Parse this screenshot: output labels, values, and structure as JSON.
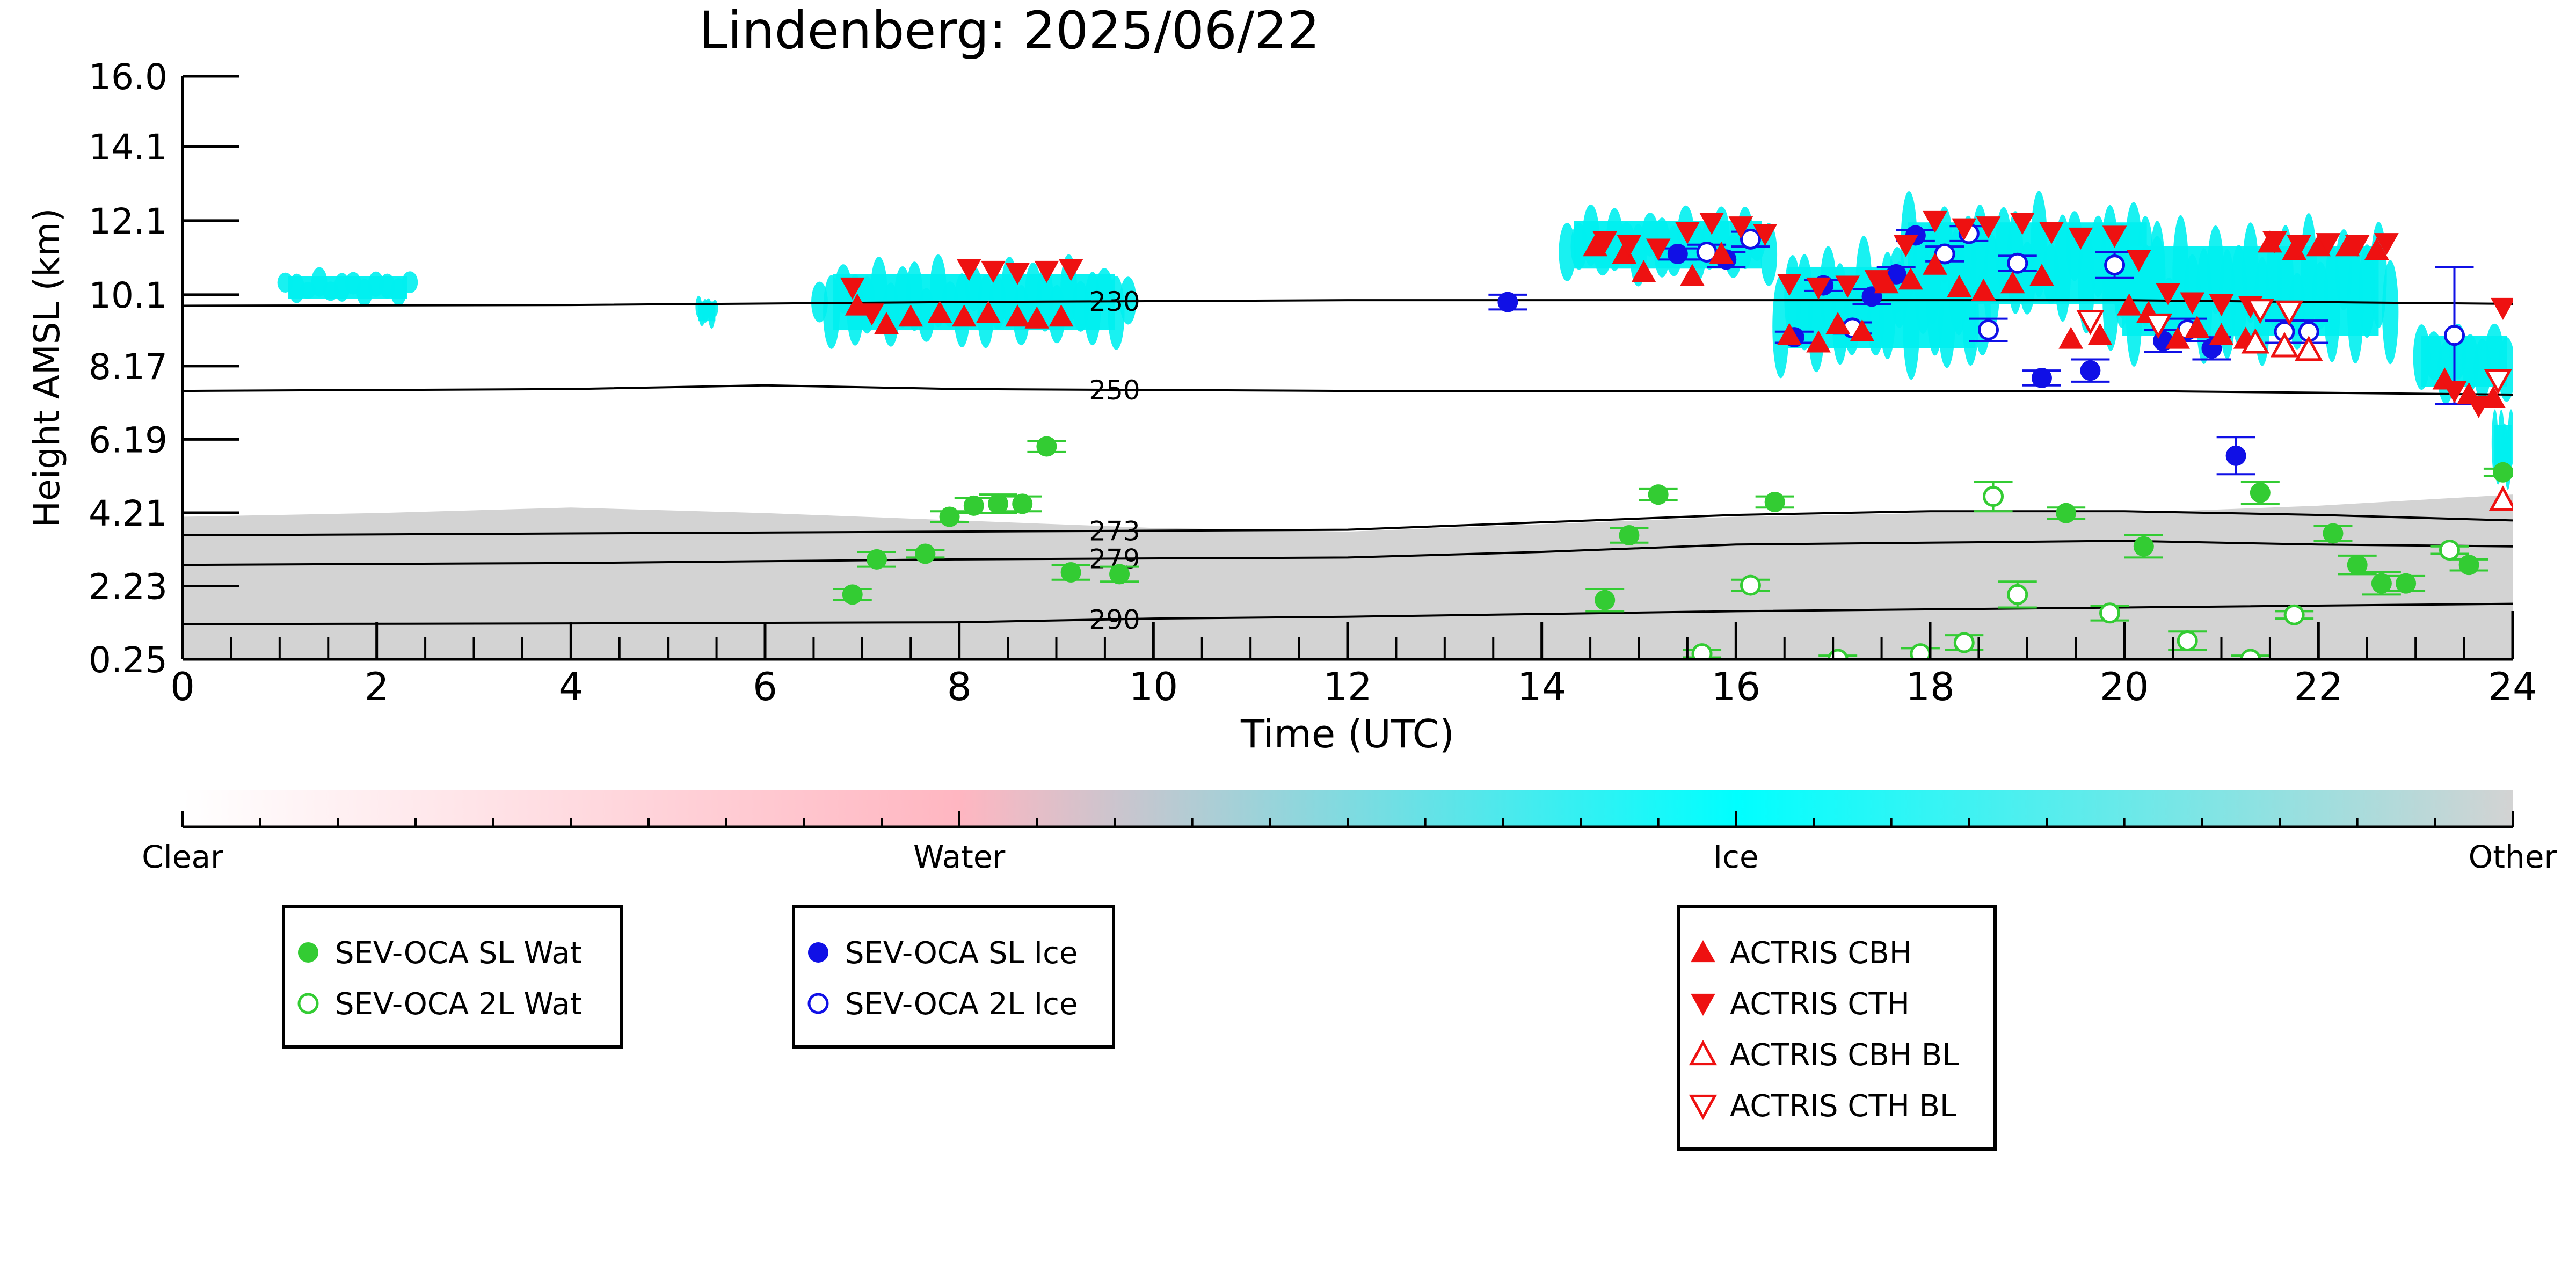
{
  "chart_data": {
    "type": "scatter",
    "title": "Lindenberg: 2025/06/22",
    "xlabel": "Time (UTC)",
    "ylabel": "Height AMSL (km)",
    "xlim": [
      0,
      24
    ],
    "ylim": [
      0.25,
      16.0
    ],
    "x_ticks": [
      0,
      2,
      4,
      6,
      8,
      10,
      12,
      14,
      16,
      18,
      20,
      22,
      24
    ],
    "x_tick_labels": [
      "0",
      "2",
      "4",
      "6",
      "8",
      "10",
      "12",
      "14",
      "16",
      "18",
      "20",
      "22",
      "24"
    ],
    "y_ticks": [
      0.25,
      2.23,
      4.21,
      6.19,
      8.17,
      10.1,
      12.1,
      14.1,
      16.0
    ],
    "y_tick_labels": [
      "0.25",
      "2.23",
      "4.21",
      "6.19",
      "8.17",
      "10.1",
      "12.1",
      "14.1",
      "16.0"
    ],
    "grid": false,
    "colorbar": {
      "labels": [
        "Clear",
        "Water",
        "Ice",
        "Other"
      ],
      "colors": [
        "#ffffff",
        "#ffb6c1",
        "#00ffff",
        "#d3d3d3"
      ]
    },
    "colors": {
      "water": "#33cc33",
      "ice": "#1010e6",
      "actris": "#ee1111",
      "ice_cloud": "#00f0f0",
      "other": "#d3d3d3",
      "contour": "#000000"
    },
    "isotherms": [
      {
        "label": "230",
        "label_x": 9.6,
        "points": [
          [
            0,
            9.8
          ],
          [
            4,
            9.82
          ],
          [
            8,
            9.9
          ],
          [
            12,
            9.95
          ],
          [
            16,
            9.95
          ],
          [
            20,
            9.95
          ],
          [
            24,
            9.85
          ]
        ]
      },
      {
        "label": "250",
        "label_x": 9.6,
        "points": [
          [
            0,
            7.5
          ],
          [
            4,
            7.55
          ],
          [
            6,
            7.65
          ],
          [
            8,
            7.55
          ],
          [
            12,
            7.5
          ],
          [
            16,
            7.5
          ],
          [
            20,
            7.5
          ],
          [
            24,
            7.4
          ]
        ]
      },
      {
        "label": "273",
        "label_x": 9.6,
        "points": [
          [
            0,
            3.6
          ],
          [
            4,
            3.65
          ],
          [
            8,
            3.7
          ],
          [
            12,
            3.75
          ],
          [
            14,
            3.95
          ],
          [
            16,
            4.15
          ],
          [
            18,
            4.25
          ],
          [
            20,
            4.25
          ],
          [
            22,
            4.15
          ],
          [
            24,
            4.0
          ]
        ]
      },
      {
        "label": "279",
        "label_x": 9.6,
        "points": [
          [
            0,
            2.8
          ],
          [
            4,
            2.85
          ],
          [
            8,
            2.95
          ],
          [
            12,
            3.0
          ],
          [
            14,
            3.15
          ],
          [
            16,
            3.35
          ],
          [
            18,
            3.4
          ],
          [
            20,
            3.45
          ],
          [
            22,
            3.35
          ],
          [
            24,
            3.3
          ]
        ]
      },
      {
        "label": "290",
        "label_x": 9.6,
        "points": [
          [
            0,
            1.2
          ],
          [
            4,
            1.22
          ],
          [
            8,
            1.25
          ],
          [
            10,
            1.35
          ],
          [
            12,
            1.4
          ],
          [
            16,
            1.55
          ],
          [
            20,
            1.65
          ],
          [
            24,
            1.75
          ]
        ]
      }
    ],
    "other_region_top": [
      [
        0,
        4.1
      ],
      [
        2,
        4.2
      ],
      [
        4,
        4.35
      ],
      [
        6,
        4.2
      ],
      [
        8,
        4.0
      ],
      [
        10,
        3.8
      ],
      [
        12,
        3.7
      ],
      [
        14,
        3.9
      ],
      [
        16,
        4.1
      ],
      [
        18,
        4.2
      ],
      [
        20,
        4.2
      ],
      [
        22,
        4.4
      ],
      [
        24,
        4.7
      ]
    ],
    "ice_cloud_patches": [
      {
        "x": [
          6.5,
          9.8
        ],
        "y": [
          8.9,
          10.9
        ]
      },
      {
        "x": [
          14.2,
          16.4
        ],
        "y": [
          10.6,
          12.3
        ]
      },
      {
        "x": [
          16.4,
          18.6
        ],
        "y": [
          8.3,
          11.2
        ]
      },
      {
        "x": [
          17.6,
          20.4
        ],
        "y": [
          9.5,
          12.4
        ]
      },
      {
        "x": [
          19.8,
          22.8
        ],
        "y": [
          8.6,
          11.8
        ]
      },
      {
        "x": [
          23.0,
          24.0
        ],
        "y": [
          7.4,
          9.2
        ]
      },
      {
        "x": [
          1.0,
          2.4
        ],
        "y": [
          9.9,
          10.7
        ]
      },
      {
        "x": [
          5.3,
          5.5
        ],
        "y": [
          9.3,
          10.0
        ]
      },
      {
        "x": [
          23.8,
          24.0
        ],
        "y": [
          5.0,
          6.8
        ]
      }
    ],
    "series": [
      {
        "name": "SEV-OCA SL Wat",
        "marker": "filled-circle",
        "color": "#33cc33",
        "points": [
          [
            6.9,
            2.0,
            0.15
          ],
          [
            7.15,
            2.95,
            0.2
          ],
          [
            7.65,
            3.1,
            0.1
          ],
          [
            7.9,
            4.1,
            0.15
          ],
          [
            8.15,
            4.4,
            0.2
          ],
          [
            8.4,
            4.45,
            0.25
          ],
          [
            8.65,
            4.45,
            0.2
          ],
          [
            8.9,
            6.0,
            0.15
          ],
          [
            9.15,
            2.6,
            0.2
          ],
          [
            9.65,
            2.55,
            0.2
          ],
          [
            14.65,
            1.85,
            0.3
          ],
          [
            14.9,
            3.6,
            0.2
          ],
          [
            15.2,
            4.7,
            0.15
          ],
          [
            16.4,
            4.5,
            0.15
          ],
          [
            19.4,
            4.2,
            0.15
          ],
          [
            20.2,
            3.3,
            0.3
          ],
          [
            21.4,
            4.75,
            0.3
          ],
          [
            22.15,
            3.65,
            0.2
          ],
          [
            22.4,
            2.8,
            0.25
          ],
          [
            22.65,
            2.3,
            0.3
          ],
          [
            22.9,
            2.3,
            0.2
          ],
          [
            23.55,
            2.8,
            0.15
          ],
          [
            23.9,
            5.3,
            0.1
          ]
        ]
      },
      {
        "name": "SEV-OCA 2L Wat",
        "marker": "open-circle",
        "color": "#33cc33",
        "points": [
          [
            15.65,
            0.4,
            0.1
          ],
          [
            16.15,
            2.25,
            0.15
          ],
          [
            17.05,
            0.25,
            0.1
          ],
          [
            17.9,
            0.4,
            0.15
          ],
          [
            18.35,
            0.7,
            0.2
          ],
          [
            18.9,
            2.0,
            0.35
          ],
          [
            19.85,
            1.5,
            0.2
          ],
          [
            20.65,
            0.75,
            0.25
          ],
          [
            21.3,
            0.25,
            0.1
          ],
          [
            21.75,
            1.45,
            0.1
          ],
          [
            18.65,
            4.65,
            0.4
          ],
          [
            23.35,
            3.2,
            0.1
          ]
        ]
      },
      {
        "name": "SEV-OCA SL Ice",
        "marker": "filled-circle",
        "color": "#1010e6",
        "points": [
          [
            13.65,
            9.9,
            0.2
          ],
          [
            15.4,
            11.2,
            0.15
          ],
          [
            15.9,
            11.05,
            0.2
          ],
          [
            16.6,
            8.95,
            0.15
          ],
          [
            16.9,
            10.35,
            0.15
          ],
          [
            17.4,
            10.05,
            0.2
          ],
          [
            17.65,
            10.65,
            0.2
          ],
          [
            17.85,
            11.7,
            0.15
          ],
          [
            19.15,
            7.85,
            0.2
          ],
          [
            19.65,
            8.05,
            0.3
          ],
          [
            20.4,
            8.85,
            0.3
          ],
          [
            20.9,
            8.65,
            0.3
          ],
          [
            21.15,
            5.75,
            0.5
          ]
        ]
      },
      {
        "name": "SEV-OCA 2L Ice",
        "marker": "open-circle",
        "color": "#1010e6",
        "points": [
          [
            15.7,
            11.25,
            0.2
          ],
          [
            16.15,
            11.6,
            0.2
          ],
          [
            17.2,
            9.2,
            0.15
          ],
          [
            18.15,
            11.2,
            0.2
          ],
          [
            18.4,
            11.75,
            0.2
          ],
          [
            18.9,
            10.95,
            0.2
          ],
          [
            18.6,
            9.15,
            0.3
          ],
          [
            19.9,
            10.9,
            0.35
          ],
          [
            20.65,
            9.15,
            0.3
          ],
          [
            21.65,
            9.1,
            0.3
          ],
          [
            21.9,
            9.1,
            0.3
          ],
          [
            23.4,
            9.0,
            1.85
          ]
        ]
      },
      {
        "name": "ACTRIS CBH",
        "marker": "triangle-up",
        "color": "#ee1111",
        "points": [
          [
            6.95,
            9.8
          ],
          [
            7.25,
            9.3
          ],
          [
            7.5,
            9.5
          ],
          [
            7.8,
            9.6
          ],
          [
            8.05,
            9.5
          ],
          [
            8.3,
            9.6
          ],
          [
            8.6,
            9.5
          ],
          [
            8.8,
            9.45
          ],
          [
            9.05,
            9.5
          ],
          [
            14.55,
            11.4
          ],
          [
            14.85,
            11.2
          ],
          [
            15.05,
            10.7
          ],
          [
            15.55,
            10.6
          ],
          [
            15.85,
            11.2
          ],
          [
            16.55,
            9.0
          ],
          [
            16.85,
            8.8
          ],
          [
            17.05,
            9.3
          ],
          [
            17.3,
            9.1
          ],
          [
            17.55,
            10.4
          ],
          [
            17.8,
            10.5
          ],
          [
            18.05,
            10.9
          ],
          [
            18.3,
            10.3
          ],
          [
            18.55,
            10.2
          ],
          [
            18.85,
            10.4
          ],
          [
            19.15,
            10.6
          ],
          [
            19.45,
            8.9
          ],
          [
            19.75,
            9.0
          ],
          [
            20.05,
            9.8
          ],
          [
            20.25,
            9.6
          ],
          [
            20.55,
            8.9
          ],
          [
            20.75,
            9.2
          ],
          [
            21.0,
            9.0
          ],
          [
            21.25,
            8.9
          ],
          [
            21.5,
            11.5
          ],
          [
            21.75,
            11.3
          ],
          [
            22.0,
            11.4
          ],
          [
            22.3,
            11.4
          ],
          [
            22.6,
            11.3
          ],
          [
            23.3,
            7.8
          ],
          [
            23.55,
            7.4
          ],
          [
            23.8,
            7.3
          ]
        ]
      },
      {
        "name": "ACTRIS CTH",
        "marker": "triangle-down",
        "color": "#ee1111",
        "points": [
          [
            6.9,
            10.3
          ],
          [
            7.1,
            9.6
          ],
          [
            8.1,
            10.8
          ],
          [
            8.35,
            10.75
          ],
          [
            8.6,
            10.7
          ],
          [
            8.9,
            10.75
          ],
          [
            9.15,
            10.8
          ],
          [
            14.65,
            11.55
          ],
          [
            14.9,
            11.45
          ],
          [
            15.2,
            11.35
          ],
          [
            15.5,
            11.8
          ],
          [
            15.75,
            12.05
          ],
          [
            16.05,
            11.95
          ],
          [
            16.3,
            11.75
          ],
          [
            16.55,
            10.4
          ],
          [
            16.85,
            10.3
          ],
          [
            17.15,
            10.35
          ],
          [
            17.45,
            10.5
          ],
          [
            17.75,
            11.45
          ],
          [
            18.05,
            12.1
          ],
          [
            18.35,
            11.9
          ],
          [
            18.6,
            11.95
          ],
          [
            18.95,
            12.05
          ],
          [
            19.25,
            11.8
          ],
          [
            19.55,
            11.65
          ],
          [
            19.9,
            11.7
          ],
          [
            20.15,
            11.05
          ],
          [
            20.45,
            10.15
          ],
          [
            20.7,
            9.9
          ],
          [
            21.0,
            9.85
          ],
          [
            21.3,
            9.8
          ],
          [
            21.55,
            11.55
          ],
          [
            21.8,
            11.45
          ],
          [
            22.1,
            11.5
          ],
          [
            22.4,
            11.45
          ],
          [
            22.7,
            11.5
          ],
          [
            23.4,
            7.5
          ],
          [
            23.65,
            7.1
          ],
          [
            23.9,
            9.75
          ]
        ]
      },
      {
        "name": "ACTRIS CBH BL",
        "marker": "open-triangle-up",
        "color": "#ee1111",
        "points": [
          [
            21.35,
            8.8
          ],
          [
            21.65,
            8.7
          ],
          [
            21.9,
            8.6
          ],
          [
            23.9,
            4.55
          ]
        ]
      },
      {
        "name": "ACTRIS CTH BL",
        "marker": "open-triangle-down",
        "color": "#ee1111",
        "points": [
          [
            19.65,
            9.4
          ],
          [
            20.35,
            9.3
          ],
          [
            21.4,
            9.7
          ],
          [
            21.7,
            9.65
          ],
          [
            23.85,
            7.8
          ]
        ]
      }
    ]
  }
}
